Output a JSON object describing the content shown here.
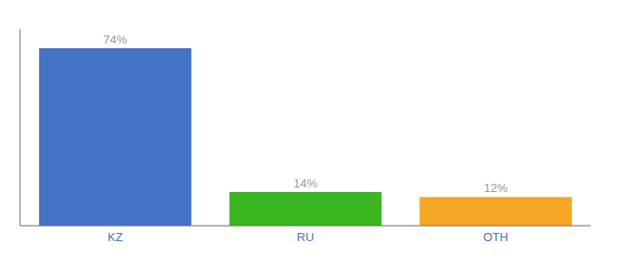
{
  "chart_data": {
    "type": "bar",
    "categories": [
      "KZ",
      "RU",
      "OTH"
    ],
    "values": [
      74,
      14,
      12
    ],
    "value_labels": [
      "74%",
      "14%",
      "12%"
    ],
    "data_labels": true,
    "colors": [
      "#4472C4",
      "#3CB523",
      "#F5A623"
    ],
    "ylim": [
      0,
      82
    ],
    "tick_labels": "x",
    "grid": false
  }
}
